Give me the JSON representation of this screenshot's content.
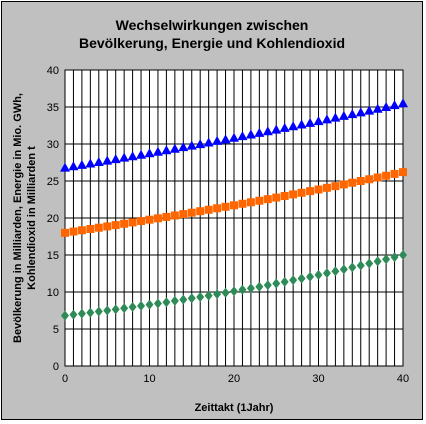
{
  "chart_data": {
    "type": "scatter",
    "title_line1": "Wechselwirkungen zwischen",
    "title_line2": "Bevölkerung, Energie und Kohlendioxid",
    "xlabel": "Zeittakt (1Jahr)",
    "ylabel_line1": "Bevölkerung in Milliarden, Energie in Mio. GWh,",
    "ylabel_line2": "Kohlendioxid in Milliarden t",
    "xlim": [
      0,
      40
    ],
    "ylim": [
      0,
      40
    ],
    "xticks": [
      0,
      10,
      20,
      30,
      40
    ],
    "yticks": [
      0,
      5,
      10,
      15,
      20,
      25,
      30,
      35,
      40
    ],
    "grid": "vertical and horizontal",
    "series": [
      {
        "color": "#0000ff",
        "marker": "triangle",
        "start": 26.8,
        "end": 35.5,
        "x": [
          0,
          1,
          2,
          3,
          4,
          5,
          6,
          7,
          8,
          9,
          10,
          11,
          12,
          13,
          14,
          15,
          16,
          17,
          18,
          19,
          20,
          21,
          22,
          23,
          24,
          25,
          26,
          27,
          28,
          29,
          30,
          31,
          32,
          33,
          34,
          35,
          36,
          37,
          38,
          39,
          40
        ]
      },
      {
        "color": "#ff6600",
        "marker": "square",
        "start": 18.0,
        "end": 26.2,
        "x": [
          0,
          1,
          2,
          3,
          4,
          5,
          6,
          7,
          8,
          9,
          10,
          11,
          12,
          13,
          14,
          15,
          16,
          17,
          18,
          19,
          20,
          21,
          22,
          23,
          24,
          25,
          26,
          27,
          28,
          29,
          30,
          31,
          32,
          33,
          34,
          35,
          36,
          37,
          38,
          39,
          40
        ]
      },
      {
        "color": "#2e8b57",
        "marker": "diamond",
        "start": 6.8,
        "end": 15.0,
        "x": [
          0,
          1,
          2,
          3,
          4,
          5,
          6,
          7,
          8,
          9,
          10,
          11,
          12,
          13,
          14,
          15,
          16,
          17,
          18,
          19,
          20,
          21,
          22,
          23,
          24,
          25,
          26,
          27,
          28,
          29,
          30,
          31,
          32,
          33,
          34,
          35,
          36,
          37,
          38,
          39,
          40
        ]
      }
    ]
  }
}
